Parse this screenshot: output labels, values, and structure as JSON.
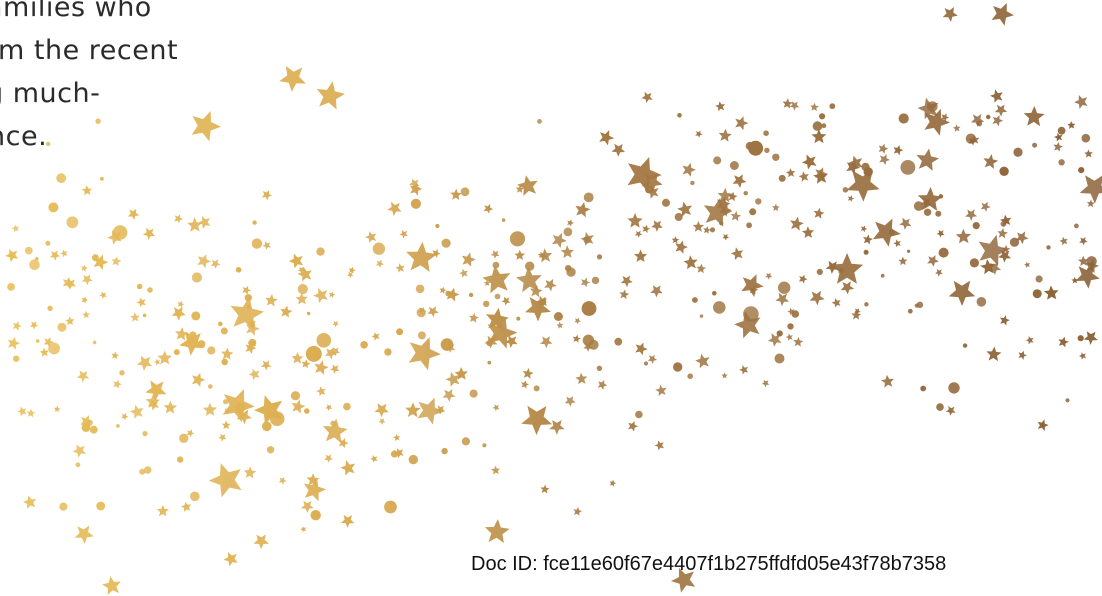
{
  "document": {
    "body_lines": [
      "amilies who",
      "m the recent",
      "g much-",
      "nce."
    ],
    "doc_id": "Doc ID: fce11e60f67e4407f1b275ffdfd05e43f78b7358"
  },
  "decoration": {
    "name": "confetti-stars",
    "colors": {
      "gold": "#e0b24c",
      "bronze": "#8b6338",
      "text": "#2b2b2b"
    }
  }
}
